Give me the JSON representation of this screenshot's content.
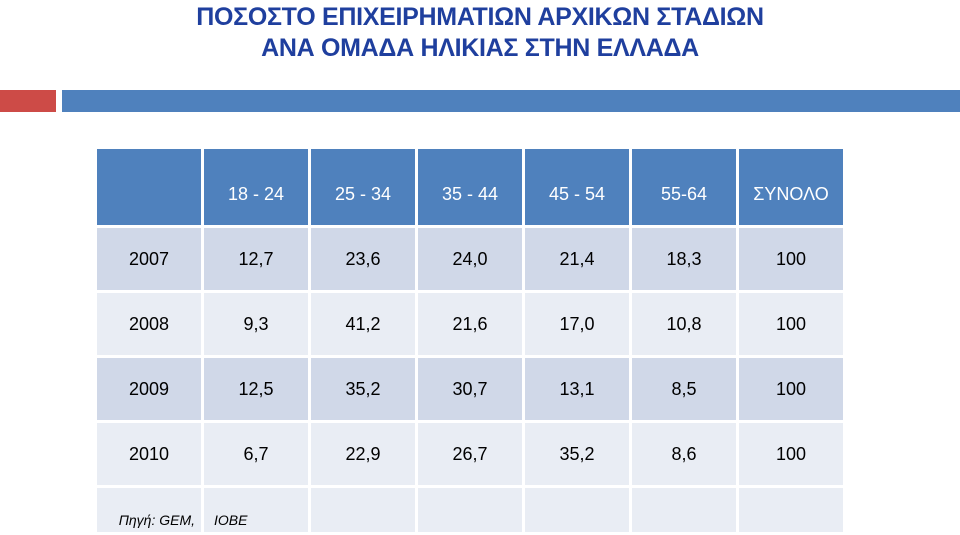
{
  "title": {
    "line1": "ΠΟΣΟΣΤΟ  ΕΠΙΧΕΙΡΗΜΑΤΙΩΝ  ΑΡΧΙΚΩΝ  ΣΤΑΔΙΩΝ",
    "line2": "ΑΝΑ  ΟΜΑΔΑ  ΗΛΙΚΙΑΣ  ΣΤΗΝ  ΕΛΛΑΔΑ"
  },
  "colors": {
    "title": "#1f3f9e",
    "header": "#4f81bd",
    "accent_red": "#cd4b47",
    "row_dark": "#d0d8e8",
    "row_light": "#e9edf4"
  },
  "table": {
    "headers": [
      "",
      "18 - 24",
      "25 - 34",
      "35 - 44",
      "45 - 54",
      "55-64",
      "ΣΥΝΟΛΟ"
    ],
    "rows": [
      [
        "2007",
        "12,7",
        "23,6",
        "24,0",
        "21,4",
        "18,3",
        "100"
      ],
      [
        "2008",
        "9,3",
        "41,2",
        "21,6",
        "17,0",
        "10,8",
        "100"
      ],
      [
        "2009",
        "12,5",
        "35,2",
        "30,7",
        "13,1",
        "8,5",
        "100"
      ],
      [
        "2010",
        "6,7",
        "22,9",
        "26,7",
        "35,2",
        "8,6",
        "100"
      ]
    ],
    "source": [
      "Πηγή: GEM,",
      "ΙΟΒΕ"
    ]
  }
}
